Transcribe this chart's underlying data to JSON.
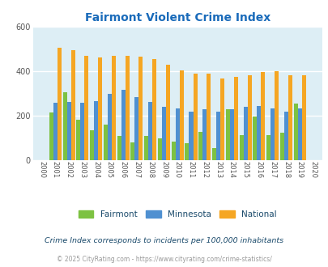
{
  "title": "Fairmont Violent Crime Index",
  "years": [
    2000,
    2001,
    2002,
    2003,
    2004,
    2005,
    2006,
    2007,
    2008,
    2009,
    2010,
    2011,
    2012,
    2013,
    2014,
    2015,
    2016,
    2017,
    2018,
    2019,
    2020
  ],
  "fairmont": [
    0,
    215,
    305,
    183,
    135,
    160,
    108,
    80,
    110,
    100,
    83,
    75,
    128,
    55,
    230,
    112,
    195,
    112,
    125,
    255,
    0
  ],
  "minnesota": [
    0,
    260,
    262,
    260,
    265,
    298,
    315,
    285,
    262,
    240,
    232,
    218,
    230,
    220,
    228,
    240,
    243,
    233,
    218,
    233,
    0
  ],
  "national": [
    0,
    507,
    495,
    468,
    460,
    468,
    470,
    465,
    455,
    430,
    405,
    390,
    390,
    368,
    376,
    381,
    398,
    399,
    382,
    380,
    0
  ],
  "fairmont_color": "#7dc242",
  "minnesota_color": "#4f90d1",
  "national_color": "#f5a623",
  "bg_color": "#ddeef5",
  "ylim": [
    0,
    600
  ],
  "yticks": [
    0,
    200,
    400,
    600
  ],
  "legend_labels": [
    "Fairmont",
    "Minnesota",
    "National"
  ],
  "subtitle": "Crime Index corresponds to incidents per 100,000 inhabitants",
  "footer": "© 2025 CityRating.com - https://www.cityrating.com/crime-statistics/",
  "title_color": "#1a6bba",
  "subtitle_color": "#1a4a6b",
  "footer_color": "#999999"
}
